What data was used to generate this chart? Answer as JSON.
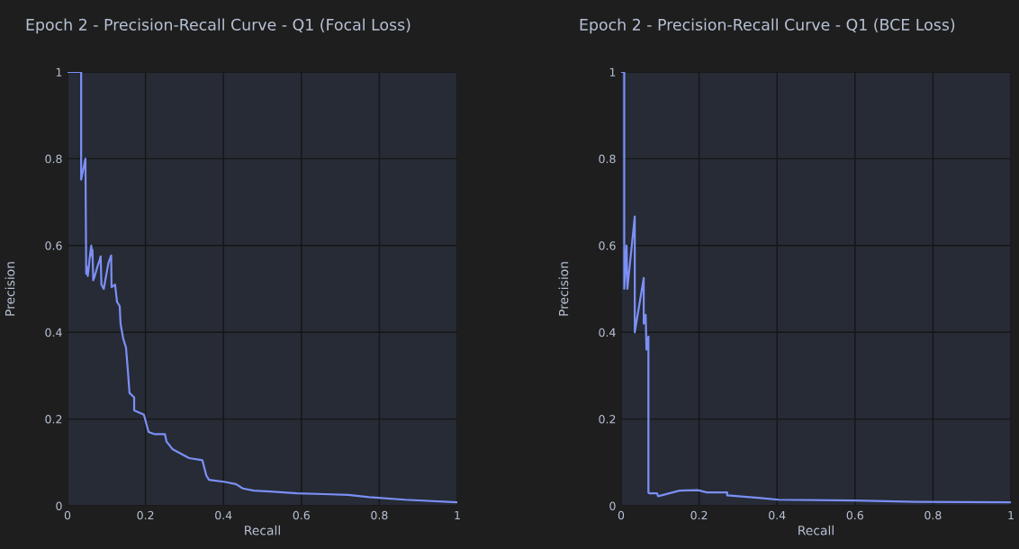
{
  "chart_data": [
    {
      "type": "line",
      "title": "Epoch 2 - Precision-Recall Curve - Q1 (Focal Loss)",
      "xlabel": "Recall",
      "ylabel": "Precision",
      "xlim": [
        0,
        1
      ],
      "ylim": [
        0,
        1
      ],
      "xticks": [
        0,
        0.2,
        0.4,
        0.6,
        0.8,
        1
      ],
      "yticks": [
        0,
        0.2,
        0.4,
        0.6,
        0.8,
        1
      ],
      "grid": true,
      "marker": "none",
      "line_style": "solid",
      "series": [
        {
          "color": "#7b8ff5",
          "x": [
            0,
            0.035,
            0.035,
            0.046,
            0.048,
            0.05,
            0.052,
            0.058,
            0.061,
            0.063,
            0.064,
            0.066,
            0.07,
            0.078,
            0.082,
            0.085,
            0.087,
            0.093,
            0.105,
            0.112,
            0.113,
            0.122,
            0.127,
            0.134,
            0.136,
            0.143,
            0.15,
            0.155,
            0.159,
            0.171,
            0.171,
            0.196,
            0.208,
            0.224,
            0.25,
            0.254,
            0.27,
            0.312,
            0.346,
            0.356,
            0.363,
            0.404,
            0.432,
            0.45,
            0.478,
            0.52,
            0.589,
            0.658,
            0.72,
            0.774,
            0.866,
            1.0
          ],
          "values": [
            1,
            1,
            0.752,
            0.8,
            0.535,
            0.55,
            0.53,
            0.58,
            0.6,
            0.575,
            0.59,
            0.52,
            0.53,
            0.555,
            0.565,
            0.575,
            0.51,
            0.5,
            0.56,
            0.577,
            0.504,
            0.51,
            0.47,
            0.46,
            0.42,
            0.385,
            0.365,
            0.31,
            0.26,
            0.25,
            0.22,
            0.21,
            0.17,
            0.165,
            0.165,
            0.148,
            0.13,
            0.11,
            0.105,
            0.07,
            0.06,
            0.055,
            0.05,
            0.04,
            0.035,
            0.033,
            0.029,
            0.027,
            0.025,
            0.02,
            0.014,
            0.008
          ]
        }
      ]
    },
    {
      "type": "line",
      "title": "Epoch 2 - Precision-Recall Curve - Q1 (BCE Loss)",
      "xlabel": "Recall",
      "ylabel": "Precision",
      "xlim": [
        0,
        1
      ],
      "ylim": [
        0,
        1
      ],
      "xticks": [
        0,
        0.2,
        0.4,
        0.6,
        0.8,
        1
      ],
      "yticks": [
        0,
        0.2,
        0.4,
        0.6,
        0.8,
        1
      ],
      "grid": true,
      "marker": "none",
      "line_style": "solid",
      "series": [
        {
          "color": "#7b8ff5",
          "x": [
            0,
            0.008,
            0.008,
            0.014,
            0.016,
            0.035,
            0.035,
            0.058,
            0.058,
            0.063,
            0.065,
            0.07,
            0.07,
            0.072,
            0.092,
            0.095,
            0.15,
            0.197,
            0.22,
            0.272,
            0.272,
            0.358,
            0.404,
            0.6,
            0.762,
            1.0
          ],
          "values": [
            1,
            1,
            0.5,
            0.6,
            0.5,
            0.667,
            0.4,
            0.525,
            0.42,
            0.44,
            0.36,
            0.39,
            0.03,
            0.029,
            0.029,
            0.022,
            0.035,
            0.036,
            0.031,
            0.031,
            0.024,
            0.018,
            0.014,
            0.012,
            0.009,
            0.008
          ]
        }
      ]
    }
  ]
}
